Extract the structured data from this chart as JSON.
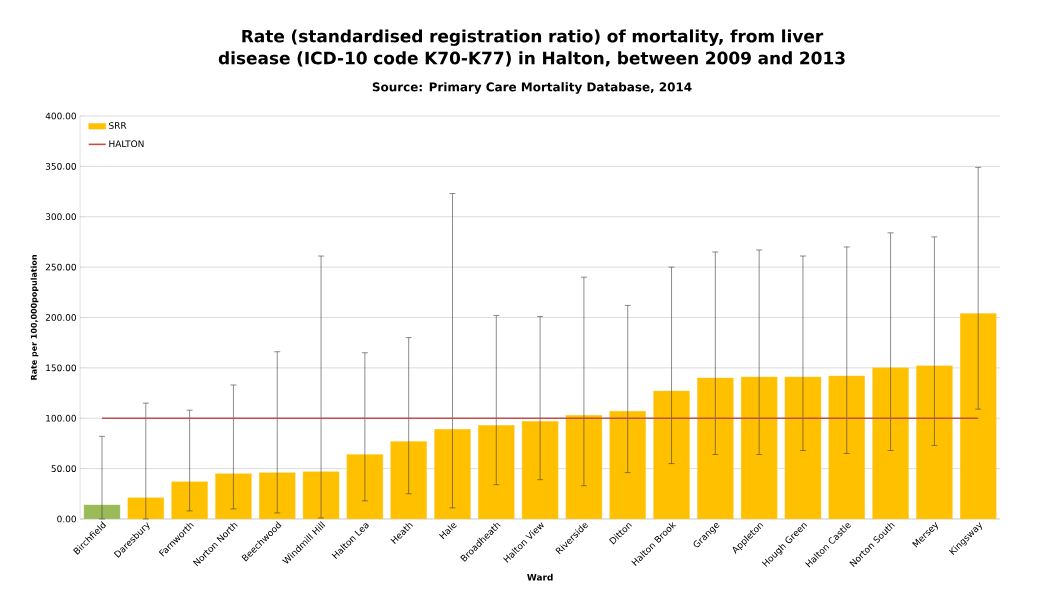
{
  "chart_data": {
    "type": "bar",
    "title": "Rate (standardised registration ratio) of mortality, from liver disease (ICD-10 code K70-K77) in Halton, between 2009 and 2013",
    "subtitle": "Source: Primary Care Mortality Database, 2014",
    "xlabel": "Ward",
    "ylabel": "Rate per 100,000population",
    "categories": [
      "Birchfield",
      "Daresbury",
      "Farnworth",
      "Norton North",
      "Beechwood",
      "Windmill Hill",
      "Halton Lea",
      "Heath",
      "Hale",
      "Broadheath",
      "Halton View",
      "Riverside",
      "Ditton",
      "Halton Brook",
      "Grange",
      "Appleton",
      "Hough Green",
      "Halton Castle",
      "Norton South",
      "Mersey",
      "Kingsway"
    ],
    "series": [
      {
        "name": "SRR",
        "color": "#ffc000",
        "colors": [
          "#9bbb59",
          "#ffc000",
          "#ffc000",
          "#ffc000",
          "#ffc000",
          "#ffc000",
          "#ffc000",
          "#ffc000",
          "#ffc000",
          "#ffc000",
          "#ffc000",
          "#ffc000",
          "#ffc000",
          "#ffc000",
          "#ffc000",
          "#ffc000",
          "#ffc000",
          "#ffc000",
          "#ffc000",
          "#ffc000",
          "#ffc000"
        ],
        "values": [
          14,
          21,
          37,
          45,
          46,
          47,
          64,
          77,
          89,
          93,
          97,
          103,
          107,
          127,
          140,
          141,
          141,
          142,
          150,
          152,
          204
        ],
        "errors": [
          [
            0,
            82
          ],
          [
            0,
            115
          ],
          [
            8,
            108
          ],
          [
            10,
            133
          ],
          [
            6,
            166
          ],
          [
            1,
            261
          ],
          [
            18,
            165
          ],
          [
            25,
            180
          ],
          [
            11,
            323
          ],
          [
            34,
            202
          ],
          [
            39,
            201
          ],
          [
            33,
            240
          ],
          [
            46,
            212
          ],
          [
            55,
            250
          ],
          [
            64,
            265
          ],
          [
            64,
            267
          ],
          [
            68,
            261
          ],
          [
            65,
            270
          ],
          [
            68,
            284
          ],
          [
            73,
            280
          ],
          [
            109,
            349
          ]
        ]
      },
      {
        "name": "HALTON",
        "type": "line",
        "color": "#c0504d",
        "values": [
          100,
          100,
          100,
          100,
          100,
          100,
          100,
          100,
          100,
          100,
          100,
          100,
          100,
          100,
          100,
          100,
          100,
          100,
          100,
          100,
          100
        ]
      }
    ],
    "ylim": [
      0,
      400
    ],
    "yticks": [
      {
        "value": 0,
        "label": "0.00"
      },
      {
        "value": 50,
        "label": "50.00"
      },
      {
        "value": 100,
        "label": "100.00"
      },
      {
        "value": 150,
        "label": "150.00"
      },
      {
        "value": 200,
        "label": "200.00"
      },
      {
        "value": 250,
        "label": "250.00"
      },
      {
        "value": 300,
        "label": "300.00"
      },
      {
        "value": 350,
        "label": "350.00"
      },
      {
        "value": 400,
        "label": "400.00"
      }
    ],
    "grid": "y",
    "legend": "top left",
    "marker": "none",
    "line_style": "solid"
  }
}
